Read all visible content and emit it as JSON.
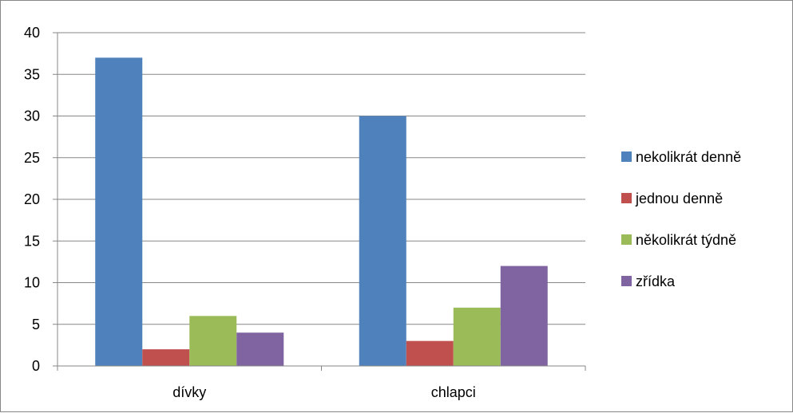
{
  "chart_data": {
    "type": "bar",
    "categories": [
      "dívky",
      "chlapci"
    ],
    "series": [
      {
        "name": "nekolikrát denně",
        "values": [
          37,
          30
        ],
        "color": "#4F81BD"
      },
      {
        "name": "jednou denně",
        "values": [
          2,
          3
        ],
        "color": "#C0504D"
      },
      {
        "name": "několikrát týdně",
        "values": [
          6,
          7
        ],
        "color": "#9BBB59"
      },
      {
        "name": "zřídka",
        "values": [
          4,
          12
        ],
        "color": "#8064A2"
      }
    ],
    "title": "",
    "xlabel": "",
    "ylabel": "",
    "ylim": [
      0,
      40
    ],
    "yticks": [
      "0",
      "5",
      "10",
      "15",
      "20",
      "25",
      "30",
      "35",
      "40"
    ],
    "grid": true,
    "legend_position": "right"
  }
}
